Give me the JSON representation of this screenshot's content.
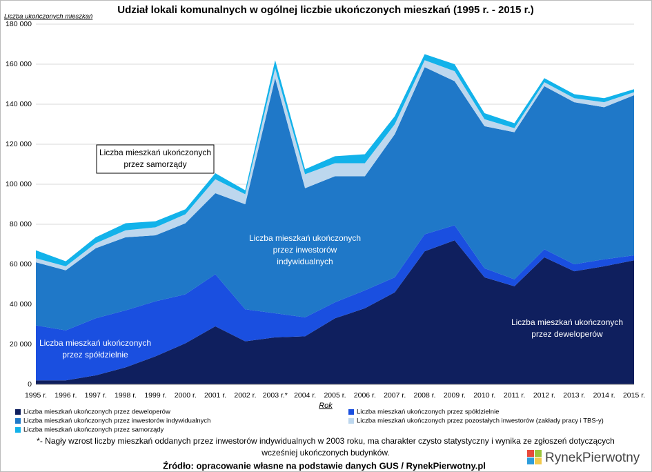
{
  "chart_data": {
    "type": "stacked_area",
    "title": "Udział lokali komunalnych w ogólnej liczbie ukończonych mieszkań (1995 r. - 2015 r.)",
    "y_label": "Liczba ukończonych mieszkań",
    "x_label": "Rok",
    "categories": [
      "1995 r.",
      "1996 r.",
      "1997 r.",
      "1998 r.",
      "1999 r.",
      "2000 r.",
      "2001 r.",
      "2002 r.",
      "2003 r.*",
      "2004 r.",
      "2005 r.",
      "2006 r.",
      "2007 r.",
      "2008 r.",
      "2009 r.",
      "2010 r.",
      "2011 r.",
      "2012 r.",
      "2013 r.",
      "2014 r.",
      "2015 r."
    ],
    "series": [
      {
        "name": "Liczba mieszkań ukończonych przez deweloperów",
        "color": "#0f1f5e",
        "values": [
          2000,
          2000,
          4500,
          8500,
          14000,
          20500,
          29000,
          21500,
          23500,
          24000,
          33000,
          38000,
          46000,
          66500,
          72000,
          53500,
          49000,
          63500,
          56500,
          59000,
          62000
        ]
      },
      {
        "name": "Liczba mieszkań ukończonych przez spółdzielnie",
        "color": "#1a4fe0",
        "values": [
          27500,
          25000,
          28500,
          28500,
          27500,
          24500,
          26000,
          16000,
          12000,
          9500,
          8000,
          9000,
          7500,
          8500,
          7500,
          4500,
          3500,
          4000,
          3500,
          3500,
          2500
        ]
      },
      {
        "name": "Liczba mieszkań ukończonych przez inwestorów indywidualnych",
        "color": "#1f78c8",
        "values": [
          31500,
          30000,
          35000,
          36500,
          33000,
          35500,
          40500,
          52500,
          117500,
          64500,
          63000,
          57000,
          71500,
          83500,
          72000,
          71000,
          73500,
          81500,
          81000,
          76000,
          80000
        ]
      },
      {
        "name": "Liczba mieszkań ukończonych przez pozostałych inwestorów (zakłady pracy i TBS-y)",
        "color": "#bdd7ee",
        "values": [
          2000,
          2000,
          2500,
          3500,
          4000,
          4500,
          7000,
          5000,
          5000,
          7000,
          6500,
          6500,
          5000,
          3500,
          5000,
          3500,
          2000,
          2000,
          2000,
          2500,
          1500
        ]
      },
      {
        "name": "Liczba mieszkań ukończonych przez samorządy",
        "color": "#12b2ea",
        "values": [
          4000,
          2500,
          3000,
          3500,
          3000,
          2500,
          3000,
          2000,
          4000,
          2500,
          3500,
          4500,
          4000,
          3000,
          3500,
          3000,
          2500,
          2000,
          2000,
          2000,
          1500
        ]
      }
    ],
    "ylim": [
      0,
      180000
    ],
    "yticks": [
      0,
      {
        "value": 20000,
        "label": "20 000"
      },
      {
        "value": 40000,
        "label": "40 000"
      },
      {
        "value": 60000,
        "label": "60 000"
      },
      {
        "value": 80000,
        "label": "80 000"
      },
      {
        "value": 100000,
        "label": "100 000"
      },
      {
        "value": 120000,
        "label": "120 000"
      },
      {
        "value": 140000,
        "label": "140 000"
      },
      {
        "value": 160000,
        "label": "160 000"
      },
      {
        "value": 180000,
        "label": "180 000"
      }
    ],
    "grid": true,
    "legend": "bottom",
    "annotations": [
      [
        "Liczba mieszkań ukończonych",
        "przez samorządy"
      ],
      [
        "Liczba mieszkań ukończonych",
        "przez inwestorów",
        "indywidualnych"
      ],
      [
        "Liczba mieszkań ukończonych",
        "przez spółdzielnie"
      ],
      [
        "Liczba mieszkań ukończonych",
        "przez deweloperów"
      ]
    ],
    "note": [
      "*- Nagły wzrost liczby mieszkań oddanych przez inwestorów indywidualnych w 2003 roku, ma charakter czysto statystyczny i wynika ze zgłoszeń dotyczących",
      "wcześniej ukończonych budynków."
    ],
    "source": "Źródło: opracowanie własne na podstawie danych GUS / RynekPierwotny.pl",
    "logo": "RynekPierwotny"
  }
}
